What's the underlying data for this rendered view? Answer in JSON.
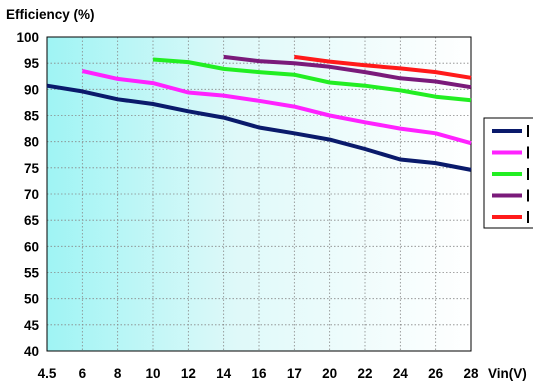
{
  "chart_data": {
    "type": "line",
    "ylabel": "Efficiency (%)",
    "xlabel": "Vin(V)",
    "x_ticks": [
      "4.5",
      "6",
      "8",
      "10",
      "12",
      "14",
      "16",
      "17",
      "20",
      "22",
      "24",
      "26",
      "28"
    ],
    "ylim": [
      40,
      100
    ],
    "y_ticks": [
      40,
      45,
      50,
      55,
      60,
      65,
      70,
      75,
      80,
      85,
      90,
      95,
      100
    ],
    "grid": true,
    "legend_position": "right (clipped)",
    "series": [
      {
        "color": "#0a1a6b",
        "x": [
          "4.5",
          "6",
          "8",
          "10",
          "12",
          "14",
          "16",
          "17",
          "20",
          "22",
          "24",
          "26",
          "28"
        ],
        "values": [
          90.7,
          89.6,
          88.1,
          87.2,
          85.8,
          84.6,
          82.7,
          81.6,
          80.4,
          78.6,
          76.6,
          75.9,
          74.6
        ]
      },
      {
        "color": "#ff22ff",
        "x": [
          "6",
          "8",
          "10",
          "12",
          "14",
          "16",
          "17",
          "20",
          "22",
          "24",
          "26",
          "28"
        ],
        "values": [
          93.5,
          92.0,
          91.2,
          89.4,
          88.8,
          87.8,
          86.7,
          85.0,
          83.7,
          82.5,
          81.6,
          79.7
        ]
      },
      {
        "color": "#22ee22",
        "x": [
          "10",
          "12",
          "14",
          "16",
          "17",
          "20",
          "22",
          "24",
          "26",
          "28"
        ],
        "values": [
          95.7,
          95.2,
          93.9,
          93.3,
          92.8,
          91.3,
          90.7,
          89.8,
          88.6,
          87.9
        ]
      },
      {
        "color": "#7a1a7a",
        "x": [
          "14",
          "16",
          "17",
          "20",
          "22",
          "24",
          "26",
          "28"
        ],
        "values": [
          96.2,
          95.4,
          95.0,
          94.3,
          93.3,
          92.1,
          91.5,
          90.4
        ]
      },
      {
        "color": "#ff1a1a",
        "x": [
          "17",
          "20",
          "22",
          "24",
          "26",
          "28"
        ],
        "values": [
          96.2,
          95.3,
          94.6,
          94.0,
          93.3,
          92.2
        ]
      }
    ]
  }
}
